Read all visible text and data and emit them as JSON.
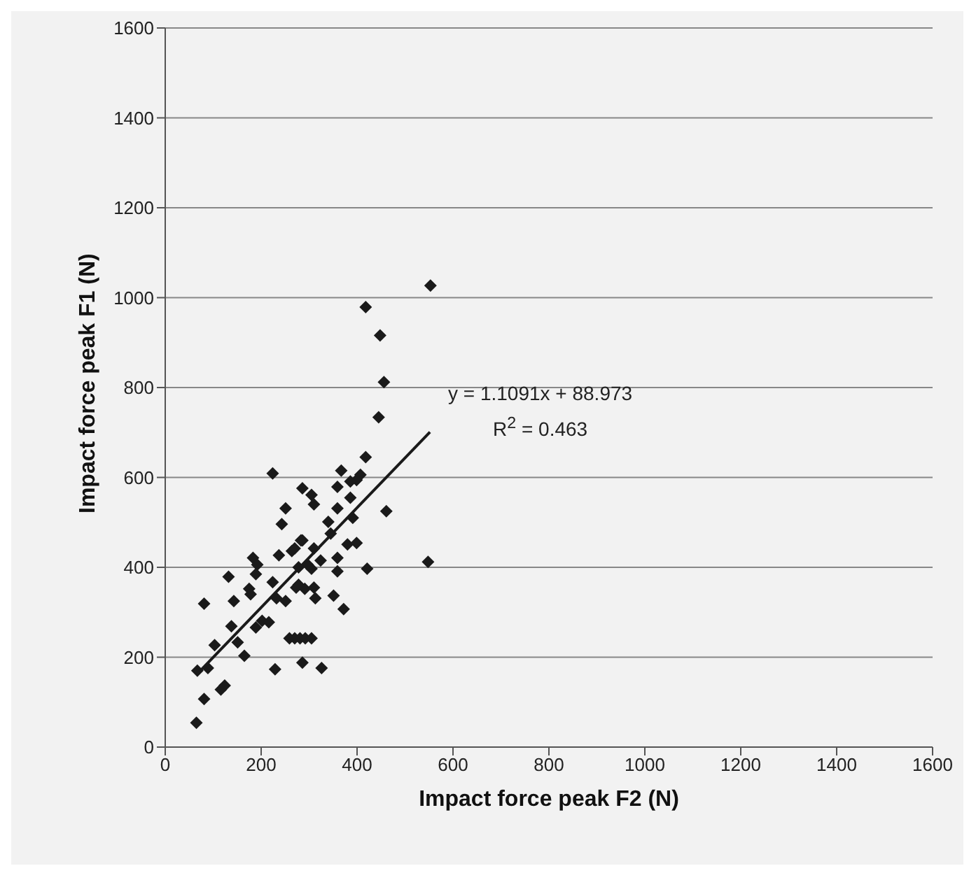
{
  "chart_data": {
    "type": "scatter",
    "xlabel": "Impact force peak F2 (N)",
    "ylabel": "Impact force peak F1 (N)",
    "xlim": [
      0,
      1600
    ],
    "xticks": [
      0,
      200,
      400,
      600,
      800,
      1000,
      1200,
      1400,
      1600
    ],
    "ylim": [
      0,
      1600
    ],
    "yticks": [
      0,
      200,
      400,
      600,
      800,
      1000,
      1200,
      1400,
      1600
    ],
    "grid": "y",
    "series": [
      {
        "color": "#1a1a1a",
        "marker": "diamond",
        "x": [
          65,
          81,
          116,
          124,
          67,
          89,
          103,
          81,
          143,
          132,
          165,
          151,
          138,
          175,
          178,
          183,
          192,
          189,
          237,
          229,
          189,
          202,
          216,
          224,
          232,
          251,
          259,
          270,
          281,
          292,
          305,
          286,
          326,
          270,
          286,
          278,
          291,
          310,
          313,
          297,
          324,
          305,
          351,
          372,
          359,
          359,
          421,
          380,
          399,
          445,
          418,
          367,
          407,
          399,
          386,
          359,
          461,
          286,
          305,
          310,
          251,
          243,
          359,
          386,
          340,
          345,
          391,
          283,
          264,
          310,
          548,
          278,
          273,
          448,
          456,
          553,
          418,
          224
        ],
        "values": [
          54,
          107,
          128,
          137,
          170,
          176,
          227,
          319,
          325,
          379,
          203,
          233,
          269,
          352,
          340,
          421,
          406,
          385,
          427,
          173,
          266,
          281,
          278,
          367,
          331,
          325,
          242,
          242,
          242,
          242,
          242,
          188,
          176,
          442,
          460,
          361,
          352,
          355,
          331,
          406,
          415,
          397,
          337,
          307,
          421,
          391,
          397,
          451,
          454,
          734,
          645,
          615,
          606,
          594,
          591,
          579,
          525,
          576,
          561,
          540,
          531,
          496,
          531,
          555,
          501,
          475,
          510,
          460,
          436,
          442,
          412,
          400,
          355,
          916,
          812,
          1027,
          979,
          609
        ]
      },
      {
        "type": "line",
        "color": "#1a1a1a",
        "marker": "none",
        "line_style": "solid",
        "x": [
          65,
          552
        ],
        "values": [
          161,
          701
        ]
      }
    ],
    "annotations": [
      "y = 1.1091x + 88.973",
      "R$^{2}$ = 0.463"
    ]
  }
}
